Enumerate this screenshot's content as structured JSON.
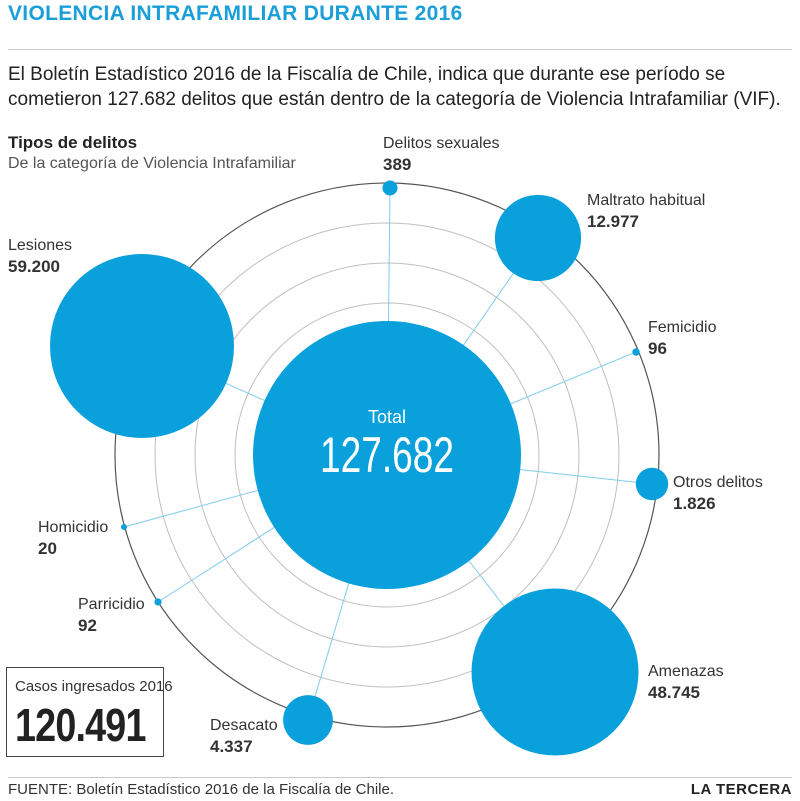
{
  "title": "VIOLENCIA INTRAFAMILIAR DURANTE 2016",
  "intro": "El Boletín Estadístico 2016 de la Fiscalía de Chile, indica que durante ese período se cometieron 127.682 delitos que están dentro de la categoría de Violencia Intrafamiliar (VIF).",
  "subtitle": "Tipos de delitos",
  "subtitle_desc": "De la categoría de Violencia Intrafamiliar",
  "cases_box": {
    "label": "Casos ingresados 2016",
    "value": "120.491"
  },
  "source": "FUENTE: Boletín Estadístico 2016 de la Fiscalía de Chile.",
  "brand": "LA TERCERA",
  "colors": {
    "accent": "#1a9fd8",
    "bubble": "#0aa0dc",
    "ring": "#555555",
    "text": "#333333"
  },
  "chart_data": {
    "type": "bubble",
    "center": {
      "label": "Total",
      "value": 127682,
      "display": "127.682"
    },
    "series": [
      {
        "name": "Delitos sexuales",
        "value": 389,
        "display": "389"
      },
      {
        "name": "Maltrato habitual",
        "value": 12977,
        "display": "12.977"
      },
      {
        "name": "Femicidio",
        "value": 96,
        "display": "96"
      },
      {
        "name": "Otros delitos",
        "value": 1826,
        "display": "1.826"
      },
      {
        "name": "Amenazas",
        "value": 48745,
        "display": "48.745"
      },
      {
        "name": "Desacato",
        "value": 4337,
        "display": "4.337"
      },
      {
        "name": "Parricidio",
        "value": 92,
        "display": "92"
      },
      {
        "name": "Homicidio",
        "value": 20,
        "display": "20"
      },
      {
        "name": "Lesiones",
        "value": 59200,
        "display": "59.200"
      }
    ]
  }
}
